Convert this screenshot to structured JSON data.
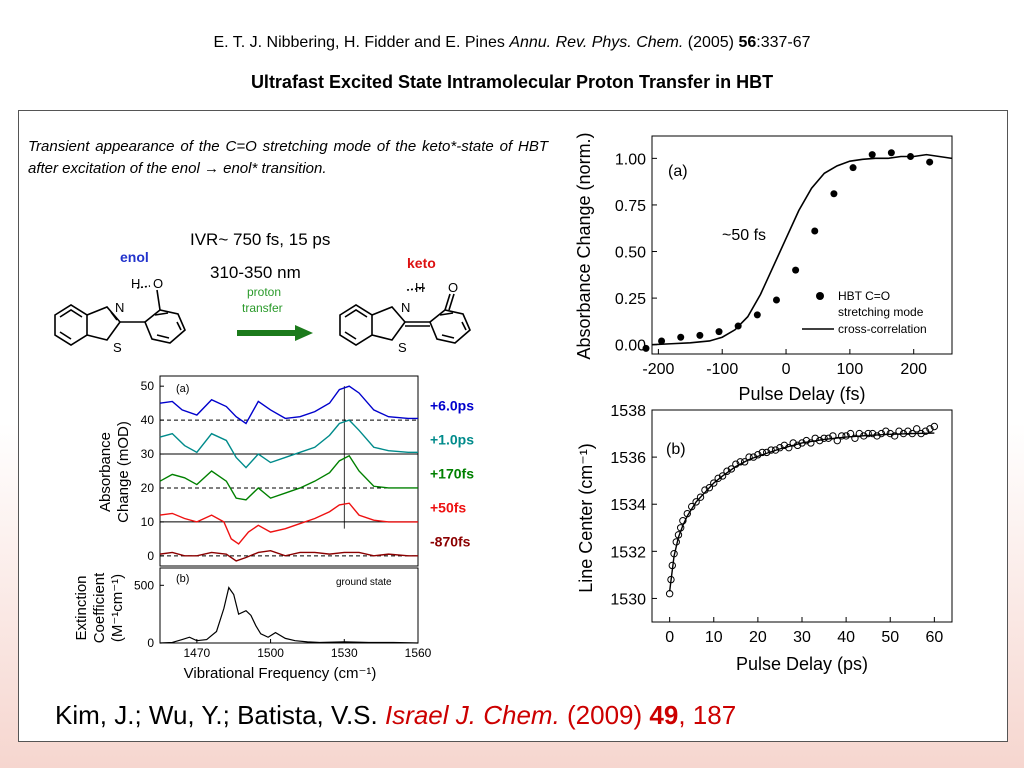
{
  "header": {
    "authors": "E. T. J. Nibbering, H. Fidder and E. Pines ",
    "journal": "Annu. Rev. Phys. Chem.",
    "year": " (2005) ",
    "volume": "56",
    "pages": ":337-67",
    "title": "Ultrafast Excited State Intramolecular Proton Transfer in HBT"
  },
  "caption": "Transient appearance of the C=O stretching mode of the keto*-state of HBT after excitation of the enol → enol* transition.",
  "ivr": "IVR~ 750 fs, 15 ps",
  "wavelength": "310-350 nm",
  "scheme": {
    "enol": "enol",
    "keto": "keto",
    "arrow_label_1": "proton",
    "arrow_label_2": "transfer",
    "atom_H": "H",
    "atom_O": "O",
    "atom_N": "N",
    "atom_S": "S"
  },
  "citation": {
    "authors": "Kim, J.; Wu, Y.; Batista, V.S. ",
    "journal": "Israel J. Chem.",
    "year": " (2009) ",
    "volume": "49",
    "pages": ", 187"
  },
  "chart_data": [
    {
      "type": "line",
      "panel": "(a)",
      "xlabel": "Vibrational Frequency (cm⁻¹)",
      "ylabel_1": "Absorbance",
      "ylabel_2": "Change (mOD)",
      "xlim": [
        1455,
        1560
      ],
      "ylim": [
        -3,
        53
      ],
      "xticks": [
        1470,
        1500,
        1530,
        1560
      ],
      "yticks": [
        0,
        10,
        20,
        30,
        40,
        50
      ],
      "marker_line_x": 1530,
      "series": [
        {
          "name": "+6.0ps",
          "color": "#0000cc",
          "offset": 40,
          "x": [
            1455,
            1460,
            1464,
            1470,
            1476,
            1482,
            1486,
            1490,
            1495,
            1500,
            1506,
            1512,
            1518,
            1524,
            1528,
            1532,
            1536,
            1542,
            1548,
            1556,
            1560
          ],
          "y": [
            45,
            45.5,
            43,
            41.5,
            46,
            44,
            41,
            39,
            45.5,
            43,
            40.5,
            41,
            42.5,
            45,
            49,
            50,
            48,
            43,
            41,
            40.5,
            40.5
          ]
        },
        {
          "name": "+1.0ps",
          "color": "#008b8b",
          "offset": 30,
          "x": [
            1455,
            1460,
            1465,
            1470,
            1476,
            1482,
            1486,
            1490,
            1495,
            1500,
            1506,
            1512,
            1518,
            1524,
            1528,
            1532,
            1536,
            1542,
            1548,
            1556,
            1560
          ],
          "y": [
            35,
            36,
            32.5,
            30.5,
            36,
            34,
            29,
            26,
            30,
            27.5,
            29,
            30.5,
            32,
            35.5,
            39,
            40,
            37,
            32,
            31,
            30.5,
            30.5
          ]
        },
        {
          "name": "+170fs",
          "color": "#008000",
          "offset": 20,
          "x": [
            1455,
            1460,
            1465,
            1470,
            1476,
            1482,
            1486,
            1490,
            1495,
            1500,
            1506,
            1512,
            1518,
            1524,
            1528,
            1532,
            1536,
            1542,
            1548,
            1556,
            1560
          ],
          "y": [
            22,
            24,
            23,
            21,
            25,
            22,
            17,
            16.5,
            20,
            17,
            18.5,
            20,
            22,
            24.5,
            28,
            29.5,
            25,
            20.5,
            20,
            20,
            20
          ]
        },
        {
          "name": "+50fs",
          "color": "#ee1111",
          "offset": 10,
          "x": [
            1455,
            1460,
            1465,
            1470,
            1476,
            1481,
            1484,
            1487,
            1491,
            1495,
            1500,
            1506,
            1512,
            1518,
            1524,
            1528,
            1532,
            1536,
            1542,
            1548,
            1556,
            1560
          ],
          "y": [
            12,
            12.5,
            11,
            10,
            12,
            10,
            5,
            3.5,
            7,
            9,
            7,
            8,
            9.5,
            11,
            13,
            15,
            15.5,
            12,
            10.5,
            10,
            10,
            10
          ]
        },
        {
          "name": "-870fs",
          "color": "#8b0000",
          "offset": 0,
          "x": [
            1455,
            1460,
            1465,
            1470,
            1476,
            1482,
            1486,
            1490,
            1495,
            1500,
            1506,
            1512,
            1518,
            1524,
            1530,
            1536,
            1542,
            1548,
            1556,
            1560
          ],
          "y": [
            0.5,
            1,
            0,
            0,
            1,
            0.5,
            -1.5,
            -0.5,
            1,
            1.5,
            0,
            1,
            1,
            0.5,
            1,
            1,
            0,
            0.5,
            0,
            0
          ]
        }
      ]
    },
    {
      "type": "line",
      "panel": "(b)",
      "annotation": "ground state",
      "ylabel_1": "Extinction",
      "ylabel_2": "Coefficient",
      "ylabel_3": "(M⁻¹cm⁻¹)",
      "xlim": [
        1455,
        1560
      ],
      "ylim": [
        0,
        650
      ],
      "yticks": [
        0,
        500
      ],
      "x": [
        1455,
        1460,
        1464,
        1467,
        1470,
        1474,
        1478,
        1481,
        1483,
        1485,
        1487,
        1490,
        1492,
        1494,
        1496,
        1499,
        1502,
        1506,
        1510,
        1515,
        1520,
        1530,
        1540,
        1550,
        1560
      ],
      "y": [
        0,
        5,
        30,
        50,
        20,
        30,
        100,
        300,
        480,
        420,
        250,
        280,
        240,
        150,
        80,
        50,
        90,
        40,
        20,
        10,
        5,
        10,
        5,
        5,
        0
      ]
    },
    {
      "type": "scatter",
      "panel": "(a)",
      "xlabel": "Pulse Delay (fs)",
      "ylabel": "Absorbance Change (norm.)",
      "xlim": [
        -210,
        260
      ],
      "ylim": [
        -0.05,
        1.12
      ],
      "xticks": [
        -200,
        -100,
        0,
        100,
        200
      ],
      "yticks": [
        0.0,
        0.25,
        0.5,
        0.75,
        1.0
      ],
      "ytick_labels": [
        "0.00",
        "0.25",
        "0.50",
        "0.75",
        "1.00"
      ],
      "annotation": "~50 fs",
      "legend": {
        "position": "bottom-right",
        "points": "HBT C=O",
        "points_2": "stretching mode",
        "line": "cross-correlation"
      },
      "points": {
        "x": [
          -225,
          -195,
          -165,
          -135,
          -105,
          -75,
          -45,
          -15,
          15,
          45,
          75,
          105,
          135,
          165,
          195,
          225
        ],
        "y": [
          -0.02,
          0.02,
          0.04,
          0.05,
          0.07,
          0.1,
          0.16,
          0.24,
          0.4,
          0.61,
          0.81,
          0.95,
          1.02,
          1.03,
          1.01,
          0.98
        ]
      },
      "curve": {
        "x": [
          -210,
          -180,
          -150,
          -120,
          -100,
          -80,
          -60,
          -40,
          -20,
          0,
          20,
          40,
          60,
          80,
          100,
          120,
          140,
          160,
          180,
          200,
          220,
          240,
          260
        ],
        "y": [
          0.0,
          0.005,
          0.01,
          0.02,
          0.04,
          0.08,
          0.15,
          0.27,
          0.42,
          0.57,
          0.72,
          0.84,
          0.92,
          0.96,
          0.985,
          0.995,
          1.0,
          1.0,
          1.01,
          1.01,
          1.02,
          1.01,
          1.0
        ]
      }
    },
    {
      "type": "scatter",
      "panel": "(b)",
      "xlabel": "Pulse Delay (ps)",
      "ylabel": "Line Center (cm⁻¹)",
      "xlim": [
        -4,
        64
      ],
      "ylim": [
        1529,
        1538
      ],
      "xticks": [
        0,
        10,
        20,
        30,
        40,
        50,
        60
      ],
      "yticks": [
        1530,
        1532,
        1534,
        1536,
        1538
      ],
      "points": {
        "x": [
          0,
          0.3,
          0.6,
          1,
          1.5,
          2,
          2.5,
          3,
          4,
          5,
          6,
          7,
          8,
          9,
          10,
          11,
          12,
          13,
          14,
          15,
          16,
          17,
          18,
          19,
          20,
          21,
          22,
          23,
          24,
          25,
          26,
          27,
          28,
          29,
          30,
          31,
          32,
          33,
          34,
          35,
          36,
          37,
          38,
          39,
          40,
          41,
          42,
          43,
          44,
          45,
          46,
          47,
          48,
          49,
          50,
          51,
          52,
          53,
          54,
          55,
          56,
          57,
          58,
          59,
          60
        ],
        "y": [
          1530.2,
          1530.8,
          1531.4,
          1531.9,
          1532.4,
          1532.7,
          1533,
          1533.3,
          1533.6,
          1533.9,
          1534.1,
          1534.3,
          1534.6,
          1534.7,
          1534.9,
          1535.1,
          1535.2,
          1535.4,
          1535.5,
          1535.7,
          1535.8,
          1535.8,
          1536,
          1536.0,
          1536.1,
          1536.2,
          1536.2,
          1536.3,
          1536.3,
          1536.4,
          1536.5,
          1536.4,
          1536.6,
          1536.5,
          1536.6,
          1536.7,
          1536.6,
          1536.8,
          1536.7,
          1536.8,
          1536.8,
          1536.9,
          1536.7,
          1536.9,
          1536.9,
          1537,
          1536.8,
          1537,
          1536.9,
          1537,
          1537,
          1536.9,
          1537,
          1537.1,
          1537,
          1536.9,
          1537.1,
          1537,
          1537.1,
          1537,
          1537.2,
          1537,
          1537.1,
          1537.2,
          1537.3
        ]
      },
      "curve": {
        "x": [
          0,
          1,
          2,
          3,
          4,
          6,
          8,
          10,
          12,
          15,
          18,
          21,
          25,
          30,
          35,
          40,
          45,
          50,
          55,
          60
        ],
        "y": [
          1530.3,
          1531.8,
          1532.6,
          1533.1,
          1533.5,
          1534.1,
          1534.5,
          1534.9,
          1535.2,
          1535.6,
          1535.9,
          1536.1,
          1536.35,
          1536.6,
          1536.75,
          1536.85,
          1536.92,
          1536.97,
          1537.0,
          1537.02
        ]
      }
    }
  ]
}
